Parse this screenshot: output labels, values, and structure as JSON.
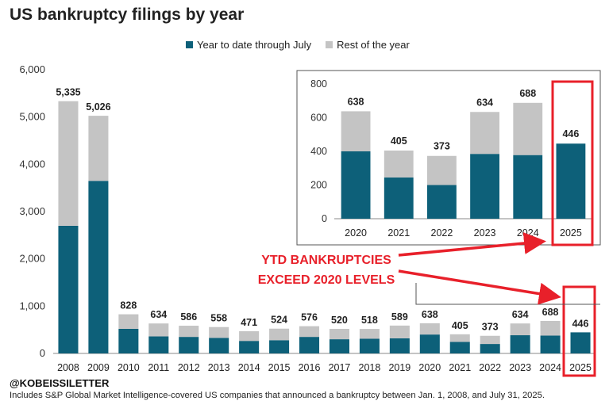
{
  "title": "US bankruptcy filings by year",
  "legend": {
    "ytd_label": "Year to date through July",
    "rest_label": "Rest of the year"
  },
  "colors": {
    "ytd": "#0d6079",
    "rest": "#c4c4c4",
    "annotation": "#e8202a",
    "axis": "#888888"
  },
  "chart_data": [
    {
      "type": "bar",
      "stacked": true,
      "categories": [
        "2008",
        "2009",
        "2010",
        "2011",
        "2012",
        "2013",
        "2014",
        "2015",
        "2016",
        "2017",
        "2018",
        "2019",
        "2020",
        "2021",
        "2022",
        "2023",
        "2024",
        "2025"
      ],
      "series": [
        {
          "name": "Year to date through July",
          "values": [
            2700,
            3650,
            520,
            360,
            350,
            330,
            265,
            280,
            350,
            300,
            310,
            320,
            400,
            245,
            200,
            385,
            378,
            446
          ]
        },
        {
          "name": "Rest of the year",
          "values": [
            2635,
            1376,
            308,
            274,
            236,
            228,
            206,
            244,
            226,
            220,
            208,
            269,
            238,
            160,
            173,
            249,
            310,
            0
          ]
        }
      ],
      "totals": [
        "5,335",
        "5,026",
        "828",
        "634",
        "586",
        "558",
        "471",
        "524",
        "576",
        "520",
        "518",
        "589",
        "638",
        "405",
        "373",
        "634",
        "688",
        "446"
      ],
      "ylim": [
        0,
        6000
      ],
      "yticks": [
        "0",
        "1,000",
        "2,000",
        "3,000",
        "4,000",
        "5,000",
        "6,000"
      ],
      "legend_position": "top"
    },
    {
      "type": "bar",
      "stacked": true,
      "inset": true,
      "categories": [
        "2020",
        "2021",
        "2022",
        "2023",
        "2024",
        "2025"
      ],
      "series": [
        {
          "name": "Year to date through July",
          "values": [
            400,
            245,
            200,
            385,
            378,
            446
          ]
        },
        {
          "name": "Rest of the year",
          "values": [
            238,
            160,
            173,
            249,
            310,
            0
          ]
        }
      ],
      "totals": [
        "638",
        "405",
        "373",
        "634",
        "688",
        "446"
      ],
      "ylim": [
        0,
        800
      ],
      "yticks": [
        "0",
        "200",
        "400",
        "600",
        "800"
      ]
    }
  ],
  "annotation": {
    "line1": "YTD BANKRUPTCIES",
    "line2": "EXCEED 2020 LEVELS"
  },
  "handle": "@KOBEISSILETTER",
  "footnote": "Includes S&P Global Market Intelligence-covered US companies that announced a bankruptcy between Jan. 1, 2008, and July 31, 2025."
}
